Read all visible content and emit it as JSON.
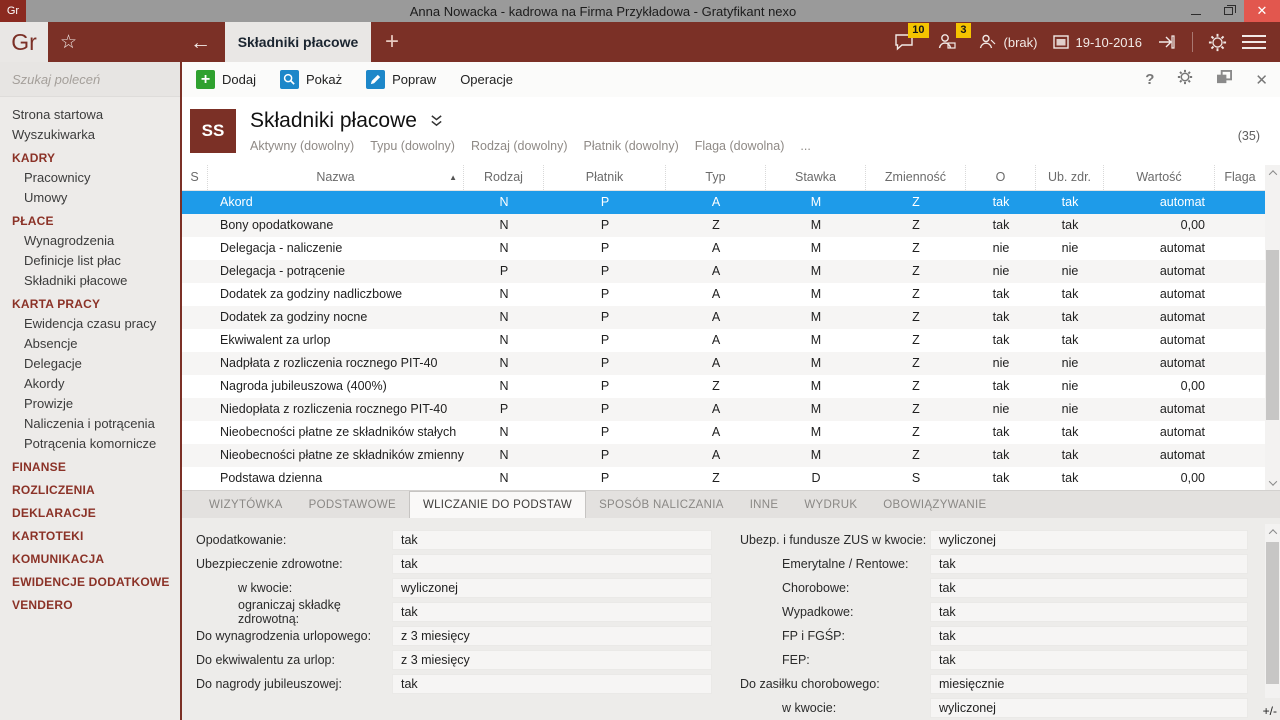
{
  "window": {
    "app_badge": "Gr",
    "title": "Anna Nowacka - kadrowa na Firma Przykładowa - Gratyfikant nexo"
  },
  "glyphs": {
    "star": "☆",
    "back": "←",
    "plus": "+",
    "close": "✕",
    "help": "?",
    "sort_asc": "▲"
  },
  "colors": {
    "maroon": "#7B3026",
    "selection_blue": "#1E9BE9",
    "badge_yellow": "#F5C400",
    "add_green": "#2FA12F",
    "icon_blue": "#1D87C9",
    "titlebar_gray": "#9A9A9A"
  },
  "tabbar": {
    "logo": "Gr",
    "active_tab": "Składniki płacowe"
  },
  "statusbar": {
    "chat_badge": "10",
    "contacts_badge": "3",
    "user": "(brak)",
    "date": "19-10-2016"
  },
  "toolbar": {
    "add": "Dodaj",
    "show": "Pokaż",
    "edit": "Popraw",
    "operations": "Operacje"
  },
  "sidebar": {
    "search_placeholder": "Szukaj poleceń",
    "items": [
      {
        "label": "Strona startowa",
        "type": "item"
      },
      {
        "label": "Wyszukiwarka",
        "type": "item"
      },
      {
        "label": "KADRY",
        "type": "section"
      },
      {
        "label": "Pracownicy",
        "type": "subitem"
      },
      {
        "label": "Umowy",
        "type": "subitem"
      },
      {
        "label": "PŁACE",
        "type": "section"
      },
      {
        "label": "Wynagrodzenia",
        "type": "subitem"
      },
      {
        "label": "Definicje list płac",
        "type": "subitem"
      },
      {
        "label": "Składniki płacowe",
        "type": "subitem"
      },
      {
        "label": "KARTA PRACY",
        "type": "section"
      },
      {
        "label": "Ewidencja czasu pracy",
        "type": "subitem"
      },
      {
        "label": "Absencje",
        "type": "subitem"
      },
      {
        "label": "Delegacje",
        "type": "subitem"
      },
      {
        "label": "Akordy",
        "type": "subitem"
      },
      {
        "label": "Prowizje",
        "type": "subitem"
      },
      {
        "label": "Naliczenia i potrącenia",
        "type": "subitem"
      },
      {
        "label": "Potrącenia komornicze",
        "type": "subitem"
      },
      {
        "label": "FINANSE",
        "type": "section"
      },
      {
        "label": "ROZLICZENIA",
        "type": "section"
      },
      {
        "label": "DEKLARACJE",
        "type": "section"
      },
      {
        "label": "KARTOTEKI",
        "type": "section"
      },
      {
        "label": "KOMUNIKACJA",
        "type": "section"
      },
      {
        "label": "EWIDENCJE DODATKOWE",
        "type": "section"
      },
      {
        "label": "VENDERO",
        "type": "section"
      }
    ]
  },
  "header": {
    "badge": "SS",
    "title": "Składniki płacowe",
    "filters": [
      "Aktywny (dowolny)",
      "Typu (dowolny)",
      "Rodzaj (dowolny)",
      "Płatnik (dowolny)",
      "Flaga (dowolna)",
      "..."
    ],
    "count": "(35)"
  },
  "table": {
    "columns": [
      "S",
      "Nazwa",
      "Rodzaj",
      "Płatnik",
      "Typ",
      "Stawka",
      "Zmienność",
      "O",
      "Ub. zdr.",
      "Wartość",
      "Flaga"
    ],
    "selected_row": 0,
    "rows": [
      [
        "",
        "Akord",
        "N",
        "P",
        "A",
        "M",
        "Z",
        "tak",
        "tak",
        "automat",
        ""
      ],
      [
        "",
        "Bony opodatkowane",
        "N",
        "P",
        "Z",
        "M",
        "Z",
        "tak",
        "tak",
        "0,00",
        ""
      ],
      [
        "",
        "Delegacja - naliczenie",
        "N",
        "P",
        "A",
        "M",
        "Z",
        "nie",
        "nie",
        "automat",
        ""
      ],
      [
        "",
        "Delegacja - potrącenie",
        "P",
        "P",
        "A",
        "M",
        "Z",
        "nie",
        "nie",
        "automat",
        ""
      ],
      [
        "",
        "Dodatek za godziny nadliczbowe",
        "N",
        "P",
        "A",
        "M",
        "Z",
        "tak",
        "tak",
        "automat",
        ""
      ],
      [
        "",
        "Dodatek za godziny nocne",
        "N",
        "P",
        "A",
        "M",
        "Z",
        "tak",
        "tak",
        "automat",
        ""
      ],
      [
        "",
        "Ekwiwalent za urlop",
        "N",
        "P",
        "A",
        "M",
        "Z",
        "tak",
        "tak",
        "automat",
        ""
      ],
      [
        "",
        "Nadpłata z rozliczenia rocznego PIT-40",
        "N",
        "P",
        "A",
        "M",
        "Z",
        "nie",
        "nie",
        "automat",
        ""
      ],
      [
        "",
        "Nagroda jubileuszowa (400%)",
        "N",
        "P",
        "Z",
        "M",
        "Z",
        "tak",
        "nie",
        "0,00",
        ""
      ],
      [
        "",
        "Niedopłata z rozliczenia rocznego PIT-40",
        "P",
        "P",
        "A",
        "M",
        "Z",
        "nie",
        "nie",
        "automat",
        ""
      ],
      [
        "",
        "Nieobecności płatne ze składników stałych",
        "N",
        "P",
        "A",
        "M",
        "Z",
        "tak",
        "tak",
        "automat",
        ""
      ],
      [
        "",
        "Nieobecności płatne ze składników zmiennych",
        "N",
        "P",
        "A",
        "M",
        "Z",
        "tak",
        "tak",
        "automat",
        ""
      ],
      [
        "",
        "Podstawa dzienna",
        "N",
        "P",
        "Z",
        "D",
        "S",
        "tak",
        "tak",
        "0,00",
        ""
      ]
    ]
  },
  "detail_tabs": {
    "labels": [
      "WIZYTÓWKA",
      "PODSTAWOWE",
      "WLICZANIE DO PODSTAW",
      "SPOSÓB NALICZANIA",
      "INNE",
      "WYDRUK",
      "OBOWIĄZYWANIE"
    ],
    "active": 2
  },
  "details": {
    "left": [
      {
        "label": "Opodatkowanie:",
        "value": "tak",
        "indent": 0
      },
      {
        "label": "Ubezpieczenie zdrowotne:",
        "value": "tak",
        "indent": 0
      },
      {
        "label": "w kwocie:",
        "value": "wyliczonej",
        "indent": 1
      },
      {
        "label": "ograniczaj składkę zdrowotną:",
        "value": "tak",
        "indent": 1
      },
      {
        "label": "Do wynagrodzenia urlopowego:",
        "value": "z 3 miesięcy",
        "indent": 0
      },
      {
        "label": "Do ekwiwalentu za urlop:",
        "value": "z 3 miesięcy",
        "indent": 0
      },
      {
        "label": "Do nagrody jubileuszowej:",
        "value": "tak",
        "indent": 0
      }
    ],
    "right": [
      {
        "label": "Ubezp. i fundusze ZUS w kwocie:",
        "value": "wyliczonej",
        "indent": 0
      },
      {
        "label": "Emerytalne / Rentowe:",
        "value": "tak",
        "indent": 1
      },
      {
        "label": "Chorobowe:",
        "value": "tak",
        "indent": 1
      },
      {
        "label": "Wypadkowe:",
        "value": "tak",
        "indent": 1
      },
      {
        "label": "FP i FGŚP:",
        "value": "tak",
        "indent": 1
      },
      {
        "label": "FEP:",
        "value": "tak",
        "indent": 1
      },
      {
        "label": "Do zasiłku chorobowego:",
        "value": "miesięcznie",
        "indent": 0
      },
      {
        "label": "w kwocie:",
        "value": "wyliczonej",
        "indent": 1
      }
    ]
  },
  "footer": {
    "plus_minus": "+/-"
  }
}
